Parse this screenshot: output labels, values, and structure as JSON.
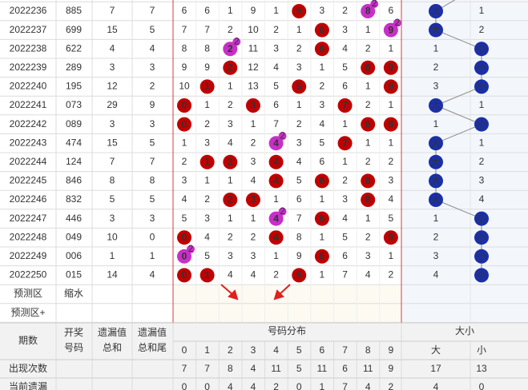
{
  "table": {
    "rows": [
      {
        "period": "2022236",
        "number": "885",
        "miss_sum": 7,
        "miss_tail": 7,
        "digits": [
          6,
          6,
          1,
          9,
          1,
          {
            "hit": 5
          },
          3,
          2,
          {
            "hit": 8,
            "times": 2
          },
          6
        ],
        "size": [
          "大",
          1
        ]
      },
      {
        "period": "2022237",
        "number": "699",
        "miss_sum": 15,
        "miss_tail": 5,
        "digits": [
          7,
          7,
          2,
          10,
          2,
          1,
          {
            "hit": 6
          },
          3,
          1,
          {
            "hit": 9,
            "times": 2
          }
        ],
        "size": [
          "大",
          2
        ]
      },
      {
        "period": "2022238",
        "number": "622",
        "miss_sum": 4,
        "miss_tail": 4,
        "digits": [
          8,
          8,
          {
            "hit": 2,
            "times": 2
          },
          11,
          3,
          2,
          {
            "hit": 6
          },
          4,
          2,
          1
        ],
        "size": [
          1,
          "小"
        ]
      },
      {
        "period": "2022239",
        "number": "289",
        "miss_sum": 3,
        "miss_tail": 3,
        "digits": [
          9,
          9,
          {
            "hit": 2
          },
          12,
          4,
          3,
          1,
          5,
          {
            "hit": 8
          },
          {
            "hit": 9
          }
        ],
        "size": [
          2,
          "小"
        ]
      },
      {
        "period": "2022240",
        "number": "195",
        "miss_sum": 12,
        "miss_tail": 2,
        "digits": [
          10,
          {
            "hit": 1
          },
          1,
          13,
          5,
          {
            "hit": 5
          },
          2,
          6,
          1,
          {
            "hit": 9
          }
        ],
        "size": [
          3,
          "小"
        ]
      },
      {
        "period": "2022241",
        "number": "073",
        "miss_sum": 29,
        "miss_tail": 9,
        "digits": [
          {
            "hit": 0
          },
          1,
          2,
          {
            "hit": 3
          },
          6,
          1,
          3,
          {
            "hit": 7
          },
          2,
          1
        ],
        "size": [
          "大",
          1
        ]
      },
      {
        "period": "2022242",
        "number": "089",
        "miss_sum": 3,
        "miss_tail": 3,
        "digits": [
          {
            "hit": 0
          },
          2,
          3,
          1,
          7,
          2,
          4,
          1,
          {
            "hit": 8
          },
          {
            "hit": 9
          }
        ],
        "size": [
          1,
          "小"
        ]
      },
      {
        "period": "2022243",
        "number": "474",
        "miss_sum": 15,
        "miss_tail": 5,
        "digits": [
          1,
          3,
          4,
          2,
          {
            "hit": 4,
            "times": 2
          },
          3,
          5,
          {
            "hit": 7
          },
          1,
          1
        ],
        "size": [
          "大",
          1
        ]
      },
      {
        "period": "2022244",
        "number": "124",
        "miss_sum": 7,
        "miss_tail": 7,
        "digits": [
          2,
          {
            "hit": 1
          },
          {
            "hit": 2
          },
          3,
          {
            "hit": 4
          },
          4,
          6,
          1,
          2,
          2
        ],
        "size": [
          "大",
          2
        ]
      },
      {
        "period": "2022245",
        "number": "846",
        "miss_sum": 8,
        "miss_tail": 8,
        "digits": [
          3,
          1,
          1,
          4,
          {
            "hit": 4
          },
          5,
          {
            "hit": 6
          },
          2,
          {
            "hit": 8
          },
          3
        ],
        "size": [
          "大",
          3
        ]
      },
      {
        "period": "2022246",
        "number": "832",
        "miss_sum": 5,
        "miss_tail": 5,
        "digits": [
          4,
          2,
          {
            "hit": 2
          },
          {
            "hit": 3
          },
          1,
          6,
          1,
          3,
          {
            "hit": 8
          },
          4
        ],
        "size": [
          "大",
          4
        ]
      },
      {
        "period": "2022247",
        "number": "446",
        "miss_sum": 3,
        "miss_tail": 3,
        "digits": [
          5,
          3,
          1,
          1,
          {
            "hit": 4,
            "times": 2
          },
          7,
          {
            "hit": 6
          },
          4,
          1,
          5
        ],
        "size": [
          1,
          "小"
        ]
      },
      {
        "period": "2022248",
        "number": "049",
        "miss_sum": 10,
        "miss_tail": 0,
        "digits": [
          {
            "hit": 0
          },
          4,
          2,
          2,
          {
            "hit": 4
          },
          8,
          1,
          5,
          2,
          {
            "hit": 9
          }
        ],
        "size": [
          2,
          "小"
        ]
      },
      {
        "period": "2022249",
        "number": "006",
        "miss_sum": 1,
        "miss_tail": 1,
        "digits": [
          {
            "hit": 0,
            "times": 2
          },
          5,
          3,
          3,
          1,
          9,
          {
            "hit": 6
          },
          6,
          3,
          1
        ],
        "size": [
          3,
          "小"
        ]
      },
      {
        "period": "2022250",
        "number": "015",
        "miss_sum": 14,
        "miss_tail": 4,
        "digits": [
          {
            "hit": 0
          },
          {
            "hit": 1
          },
          4,
          4,
          2,
          {
            "hit": 5
          },
          1,
          7,
          4,
          2
        ],
        "size": [
          4,
          "小"
        ]
      }
    ],
    "predict_rows": [
      {
        "label": "预测区",
        "note": "缩水"
      },
      {
        "label": "预测区+"
      }
    ],
    "header": {
      "period": "期数",
      "number": [
        "开奖",
        "号码"
      ],
      "miss_sum": [
        "遗漏值",
        "总和"
      ],
      "miss_tail": [
        "遗漏值",
        "总和尾"
      ],
      "digits_title": "号码分布",
      "digits": [
        0,
        1,
        2,
        3,
        4,
        5,
        6,
        7,
        8,
        9
      ],
      "size_title": "大小",
      "size": [
        "大",
        "小"
      ]
    },
    "footer": [
      {
        "label": "出现次数",
        "digits": [
          7,
          7,
          8,
          4,
          11,
          5,
          11,
          6,
          11,
          9
        ],
        "size": [
          17,
          13
        ]
      },
      {
        "label": "当前遗漏",
        "digits": [
          0,
          0,
          4,
          4,
          2,
          0,
          1,
          7,
          4,
          2
        ],
        "size": [
          4,
          0
        ]
      }
    ]
  }
}
